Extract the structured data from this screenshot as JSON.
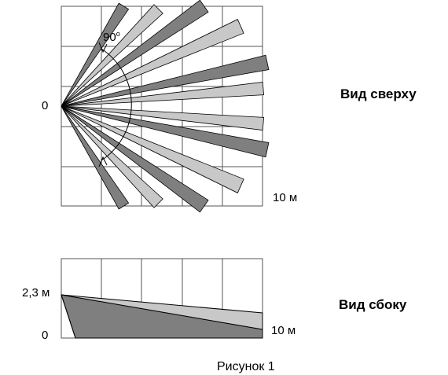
{
  "top_view": {
    "origin_label": "0",
    "angle_value": "90",
    "angle_unit": "o",
    "range_label": "10 м",
    "title": "Вид сверху"
  },
  "side_view": {
    "height_label": "2,3 м",
    "zero_label": "0",
    "range_label": "10 м",
    "title": "Вид сбоку"
  },
  "caption": "Рисунок 1",
  "colors": {
    "beam_dark": "#7f7f7f",
    "beam_light": "#c8c8c8",
    "grid": "#555555",
    "line": "#000000"
  }
}
